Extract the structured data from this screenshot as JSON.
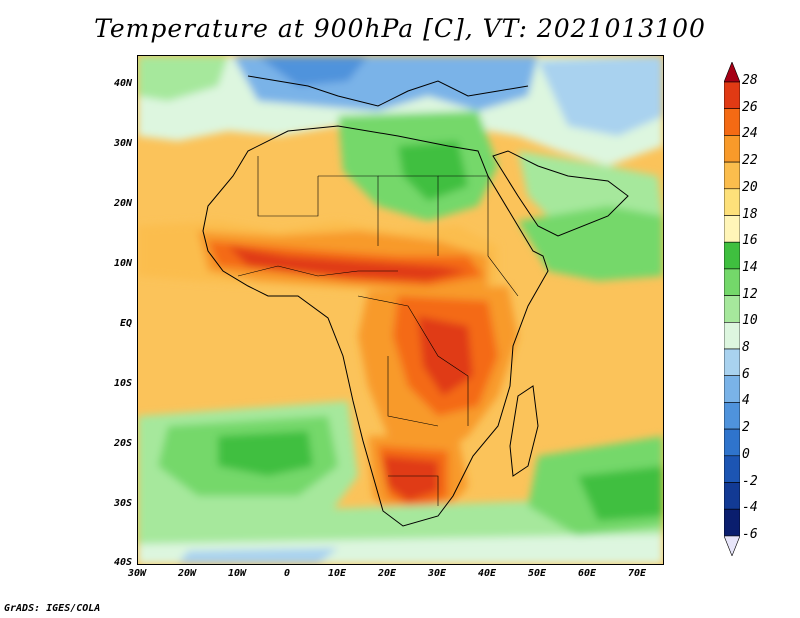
{
  "title": "Temperature at 900hPa [C], VT: 2021013100",
  "credit": "GrADS: IGES/COLA",
  "map": {
    "variable": "Temperature",
    "level": "900hPa",
    "units": "C",
    "valid_time": "2021013100",
    "lat_labels": [
      "40N",
      "30N",
      "20N",
      "10N",
      "EQ",
      "10S",
      "20S",
      "30S",
      "40S"
    ],
    "lon_labels": [
      "30W",
      "20W",
      "10W",
      "0",
      "10E",
      "20E",
      "30E",
      "40E",
      "50E",
      "60E",
      "70E"
    ]
  },
  "colorbar": {
    "labels": [
      "28",
      "26",
      "24",
      "22",
      "20",
      "18",
      "16",
      "14",
      "12",
      "10",
      "8",
      "6",
      "4",
      "2",
      "0",
      "-2",
      "-4",
      "-6"
    ],
    "colors": [
      "#a50015",
      "#e03a14",
      "#f46a14",
      "#f89a2a",
      "#fbbd4d",
      "#fde07a",
      "#fff5b8",
      "#3fbf3f",
      "#74d86a",
      "#a6e89c",
      "#ddf6df",
      "#a9d2ef",
      "#7ab3e8",
      "#4f93dc",
      "#2f74cc",
      "#1c55b3",
      "#123a94",
      "#0a1e6e",
      "#e8e6fa"
    ]
  }
}
